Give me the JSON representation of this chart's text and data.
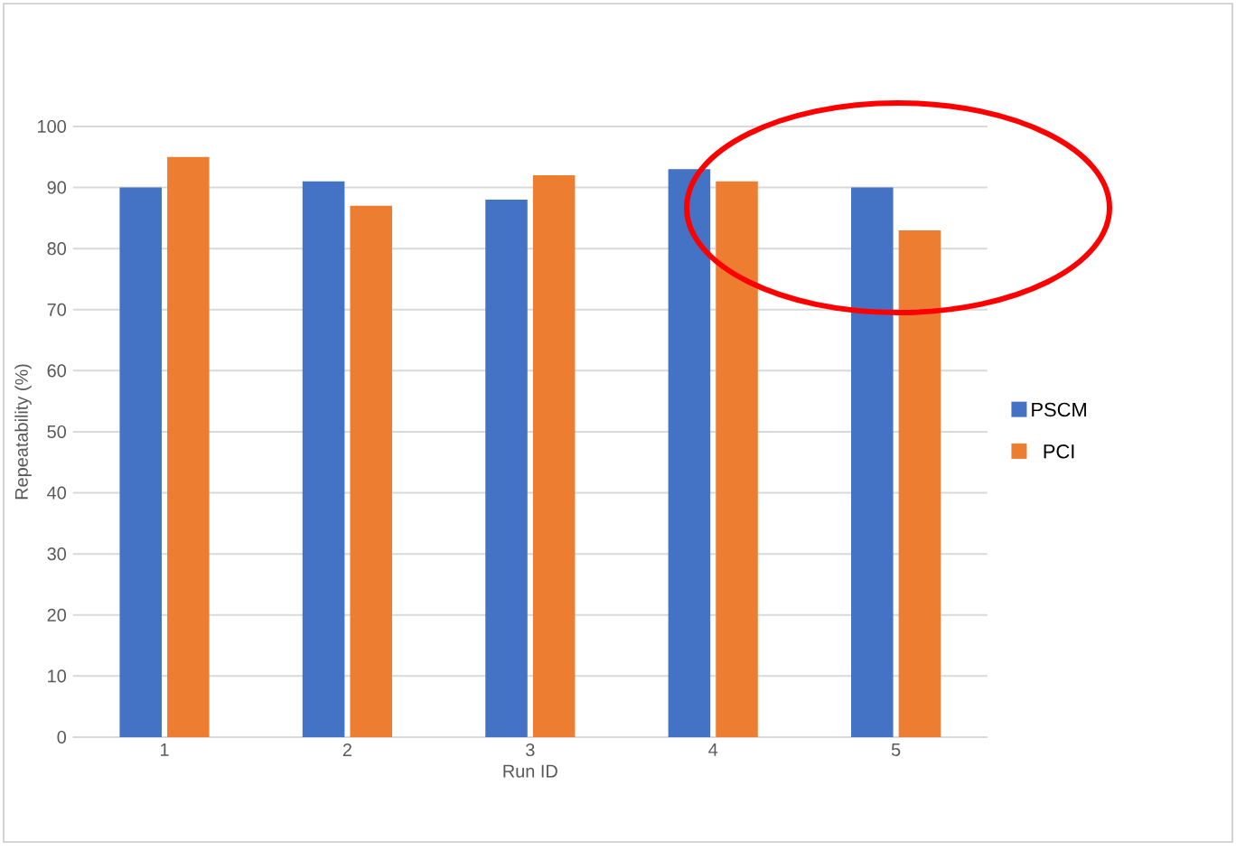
{
  "chart_data": {
    "type": "bar",
    "xlabel": "Run ID",
    "ylabel": "Repeatability (%)",
    "categories": [
      "1",
      "2",
      "3",
      "4",
      "5"
    ],
    "series": [
      {
        "name": "PSCM",
        "color": "#4472c4",
        "values": [
          90,
          91,
          88,
          93,
          90
        ]
      },
      {
        "name": "PCI",
        "color": "#ed7d31",
        "values": [
          95,
          87,
          92,
          91,
          83
        ]
      }
    ],
    "ylim": [
      0,
      100
    ],
    "yticks": [
      0,
      10,
      20,
      30,
      40,
      50,
      60,
      70,
      80,
      90,
      100
    ],
    "grid": "y",
    "legend": "right"
  }
}
